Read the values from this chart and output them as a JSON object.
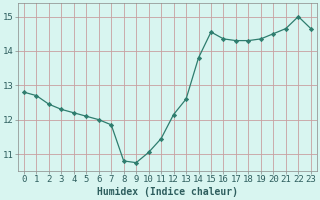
{
  "x": [
    0,
    1,
    2,
    3,
    4,
    5,
    6,
    7,
    8,
    9,
    10,
    11,
    12,
    13,
    14,
    15,
    16,
    17,
    18,
    19,
    20,
    21,
    22,
    23
  ],
  "y": [
    12.8,
    12.7,
    12.45,
    12.3,
    12.2,
    12.1,
    12.0,
    11.85,
    10.8,
    10.75,
    11.05,
    11.45,
    12.15,
    12.6,
    13.8,
    14.55,
    14.35,
    14.3,
    14.3,
    14.35,
    14.5,
    14.65,
    15.0,
    14.65
  ],
  "line_color": "#2e7d6e",
  "marker": "D",
  "markersize": 2.2,
  "linewidth": 0.9,
  "bg_color": "#d8f5f0",
  "grid_color": "#c8a0a0",
  "xlabel": "Humidex (Indice chaleur)",
  "xlabel_fontsize": 7,
  "ylabel_ticks": [
    11,
    12,
    13,
    14,
    15
  ],
  "ylim": [
    10.5,
    15.4
  ],
  "xlim": [
    -0.5,
    23.5
  ],
  "tick_fontsize": 6.5,
  "label_color": "#2e5e5e"
}
